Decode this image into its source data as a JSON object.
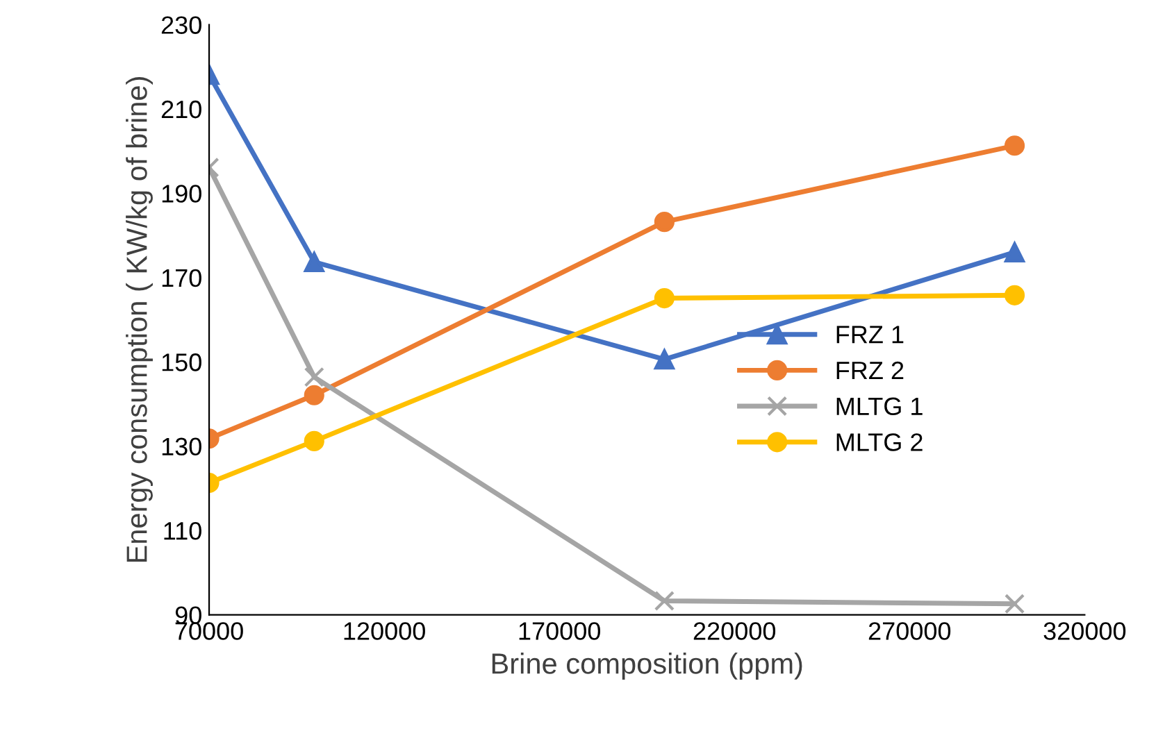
{
  "chart_data": {
    "type": "line",
    "xlabel": "Brine composition (ppm)",
    "ylabel": "Energy consumption ( KW/kg of brine)",
    "x": [
      70000,
      100000,
      200000,
      300000
    ],
    "xlim": [
      70000,
      320000
    ],
    "xticks": [
      70000,
      120000,
      170000,
      220000,
      270000,
      320000
    ],
    "ylim": [
      90,
      230
    ],
    "yticks": [
      90,
      110,
      130,
      150,
      170,
      190,
      210,
      230
    ],
    "grid": false,
    "legend": "right",
    "series": [
      {
        "name": "FRZ 1",
        "color": "#4472c4",
        "marker": "triangle",
        "values": [
          218.1,
          173.7,
          150.6,
          176.0
        ]
      },
      {
        "name": "FRZ 2",
        "color": "#ed7d31",
        "marker": "circle",
        "values": [
          131.8,
          142.1,
          183.2,
          201.3
        ]
      },
      {
        "name": "MLTG 1",
        "color": "#a5a5a5",
        "marker": "cross",
        "values": [
          196.1,
          146.4,
          93.3,
          92.6
        ]
      },
      {
        "name": "MLTG 2",
        "color": "#ffc000",
        "marker": "circle",
        "values": [
          121.3,
          131.2,
          165.1,
          165.8
        ]
      }
    ]
  }
}
